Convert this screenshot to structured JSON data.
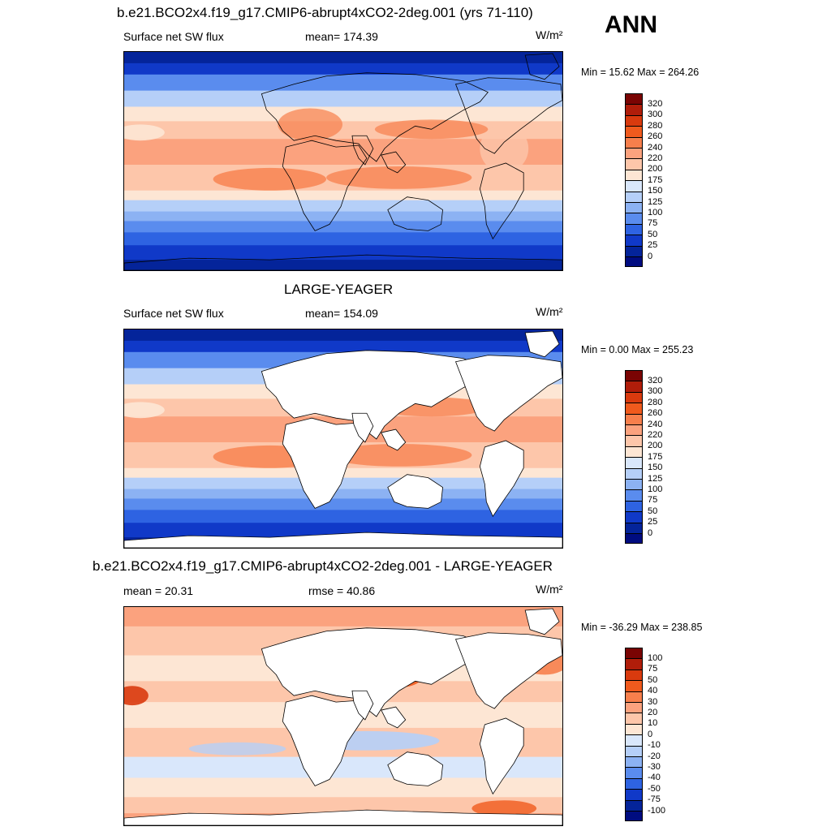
{
  "season": "ANN",
  "units": "W/m²",
  "panels": [
    {
      "id": "model",
      "title": "b.e21.BCO2x4.f19_g17.CMIP6-abrupt4xCO2-2deg.001 (yrs 71-110)",
      "left_label": "Surface net SW flux",
      "center_label": "mean= 174.39",
      "right_label": "W/m²",
      "minmax": "Min =  15.62 Max = 264.26",
      "colorbar_labels": [
        "320",
        "300",
        "280",
        "260",
        "240",
        "220",
        "200",
        "175",
        "150",
        "125",
        "100",
        "75",
        "50",
        "25",
        "0"
      ],
      "land_masked": false
    },
    {
      "id": "obs",
      "title": "LARGE-YEAGER",
      "left_label": "Surface net SW flux",
      "center_label": "mean= 154.09",
      "right_label": "W/m²",
      "minmax": "Min =   0.00 Max = 255.23",
      "colorbar_labels": [
        "320",
        "300",
        "280",
        "260",
        "240",
        "220",
        "200",
        "175",
        "150",
        "125",
        "100",
        "75",
        "50",
        "25",
        "0"
      ],
      "land_masked": true
    },
    {
      "id": "diff",
      "title": "b.e21.BCO2x4.f19_g17.CMIP6-abrupt4xCO2-2deg.001 - LARGE-YEAGER",
      "left_label": "mean =  20.31",
      "center_label": "rmse =  40.86",
      "right_label": "W/m²",
      "minmax": "Min = -36.29 Max = 238.85",
      "colorbar_labels": [
        "100",
        "75",
        "50",
        "40",
        "30",
        "20",
        "10",
        "0",
        "-10",
        "-20",
        "-30",
        "-40",
        "-50",
        "-75",
        "-100"
      ],
      "land_masked": true
    }
  ],
  "colors": {
    "colorbar_scale": [
      "#7a0403",
      "#b01d0a",
      "#d93a0e",
      "#f05a1d",
      "#f77f4c",
      "#fba27e",
      "#fdc6aa",
      "#fde6d4",
      "#d9e7fb",
      "#b5cff8",
      "#8cb2f3",
      "#5a8cee",
      "#2e63e2",
      "#1039c8",
      "#04249a",
      "#000c80"
    ],
    "land": "#ffffff",
    "coast": "#000000"
  }
}
